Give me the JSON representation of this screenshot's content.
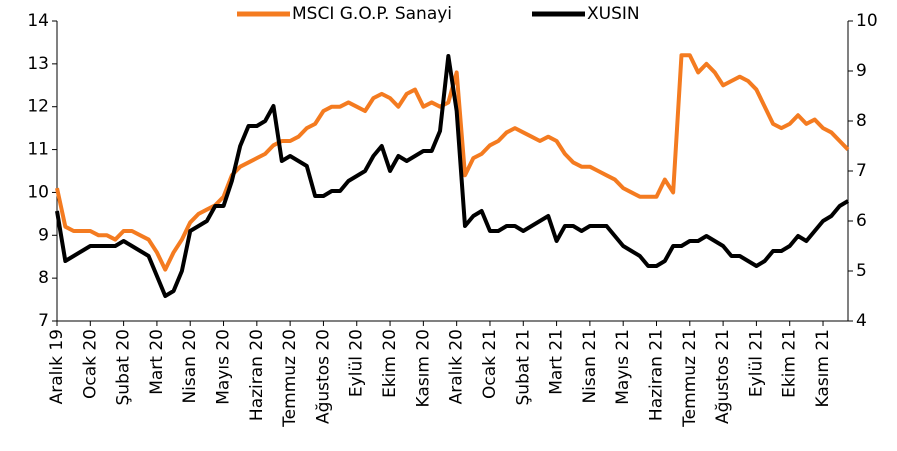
{
  "chart_data": {
    "type": "line",
    "categories": [
      "Aralık 19",
      null,
      null,
      null,
      "Ocak 20",
      null,
      null,
      null,
      "Şubat 20",
      null,
      null,
      null,
      "Mart 20",
      null,
      null,
      null,
      "Nisan 20",
      null,
      null,
      null,
      "Mayıs 20",
      null,
      null,
      null,
      "Haziran 20",
      null,
      null,
      null,
      "Temmuz 20",
      null,
      null,
      null,
      "Ağustos 20",
      null,
      null,
      null,
      "Eylül 20",
      null,
      null,
      null,
      "Ekim 20",
      null,
      null,
      null,
      "Kasım 20",
      null,
      null,
      null,
      "Aralık 20",
      null,
      null,
      null,
      "Ocak 21",
      null,
      null,
      null,
      "Şubat 21",
      null,
      null,
      null,
      "Mart 21",
      null,
      null,
      null,
      "Nisan 21",
      null,
      null,
      null,
      "Mayıs 21",
      null,
      null,
      null,
      "Haziran 21",
      null,
      null,
      null,
      "Temmuz 21",
      null,
      null,
      null,
      "Ağustos 21",
      null,
      null,
      null,
      "Eylül 21",
      null,
      null,
      null,
      "Ekim 21",
      null,
      null,
      null,
      "Kasım 21",
      null,
      null,
      null
    ],
    "series": [
      {
        "name": "MSCI G.O.P. Sanayi",
        "color": "#f47b20",
        "values": [
          10.1,
          9.2,
          9.1,
          9.1,
          9.1,
          9.0,
          9.0,
          8.9,
          9.1,
          9.1,
          9.0,
          8.9,
          8.6,
          8.2,
          8.6,
          8.9,
          9.3,
          9.5,
          9.6,
          9.7,
          9.9,
          10.4,
          10.6,
          10.7,
          10.8,
          10.9,
          11.1,
          11.2,
          11.2,
          11.3,
          11.5,
          11.6,
          11.9,
          12.0,
          12.0,
          12.1,
          12.0,
          11.9,
          12.2,
          12.3,
          12.2,
          12.0,
          12.3,
          12.4,
          12.0,
          12.1,
          12.0,
          12.1,
          12.8,
          10.4,
          10.8,
          10.9,
          11.1,
          11.2,
          11.4,
          11.5,
          11.4,
          11.3,
          11.2,
          11.3,
          11.2,
          10.9,
          10.7,
          10.6,
          10.6,
          10.5,
          10.4,
          10.3,
          10.1,
          10.0,
          9.9,
          9.9,
          9.9,
          10.3,
          10.0,
          13.2,
          13.2,
          12.8,
          13.0,
          12.8,
          12.5,
          12.6,
          12.7,
          12.6,
          12.4,
          12.0,
          11.6,
          11.5,
          11.6,
          11.8,
          11.6,
          11.7,
          11.5,
          11.4,
          11.2,
          11.0
        ]
      },
      {
        "name": "XUSIN",
        "color": "#000000",
        "axis": "y2",
        "values": [
          6.2,
          5.2,
          5.3,
          5.4,
          5.5,
          5.5,
          5.5,
          5.5,
          5.6,
          5.5,
          5.4,
          5.3,
          4.9,
          4.5,
          4.6,
          5.0,
          5.8,
          5.9,
          6.0,
          6.3,
          6.3,
          6.8,
          7.5,
          7.9,
          7.9,
          8.0,
          8.3,
          7.2,
          7.3,
          7.2,
          7.1,
          6.5,
          6.5,
          6.6,
          6.6,
          6.8,
          6.9,
          7.0,
          7.3,
          7.5,
          7.0,
          7.3,
          7.2,
          7.3,
          7.4,
          7.4,
          7.8,
          9.3,
          8.2,
          5.9,
          6.1,
          6.2,
          5.8,
          5.8,
          5.9,
          5.9,
          5.8,
          5.9,
          6.0,
          6.1,
          5.6,
          5.9,
          5.9,
          5.8,
          5.9,
          5.9,
          5.9,
          5.7,
          5.5,
          5.4,
          5.3,
          5.1,
          5.1,
          5.2,
          5.5,
          5.5,
          5.6,
          5.6,
          5.7,
          5.6,
          5.5,
          5.3,
          5.3,
          5.2,
          5.1,
          5.2,
          5.4,
          5.4,
          5.5,
          5.7,
          5.6,
          5.8,
          6.0,
          6.1,
          6.3,
          6.4
        ]
      }
    ],
    "ylim": [
      7,
      14
    ],
    "yticks": [
      7,
      8,
      9,
      10,
      11,
      12,
      13,
      14
    ],
    "y2lim": [
      4,
      10
    ],
    "y2ticks": [
      4,
      5,
      6,
      7,
      8,
      9,
      10
    ],
    "grid": false,
    "legend": "top"
  }
}
